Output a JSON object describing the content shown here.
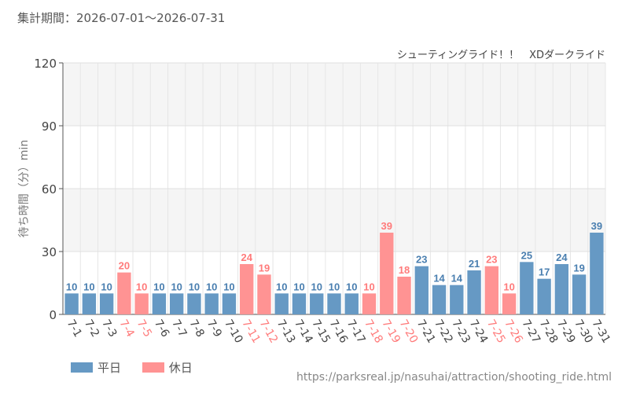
{
  "period_label": "集計期間：2026-07-01～2026-07-31",
  "source_url": "https://parksreal.jp/nasuhai/attraction/shooting_ride.html",
  "chart_data": {
    "type": "bar",
    "title": "シューティングライド！！　XDダークライド",
    "ylabel": "待ち時間（分）min",
    "xlabel": "",
    "ylim": [
      0,
      120
    ],
    "yticks": [
      0,
      30,
      60,
      90,
      120
    ],
    "grid": true,
    "categories": [
      "7-1",
      "7-2",
      "7-3",
      "7-4",
      "7-5",
      "7-6",
      "7-7",
      "7-8",
      "7-9",
      "7-10",
      "7-11",
      "7-12",
      "7-13",
      "7-14",
      "7-15",
      "7-16",
      "7-17",
      "7-18",
      "7-19",
      "7-20",
      "7-21",
      "7-22",
      "7-23",
      "7-24",
      "7-25",
      "7-26",
      "7-27",
      "7-28",
      "7-29",
      "7-30",
      "7-31"
    ],
    "values": [
      10,
      10,
      10,
      20,
      10,
      10,
      10,
      10,
      10,
      10,
      24,
      19,
      10,
      10,
      10,
      10,
      10,
      10,
      39,
      18,
      23,
      14,
      14,
      21,
      23,
      10,
      25,
      17,
      24,
      19,
      39
    ],
    "day_type": [
      "平日",
      "平日",
      "平日",
      "休日",
      "休日",
      "平日",
      "平日",
      "平日",
      "平日",
      "平日",
      "休日",
      "休日",
      "平日",
      "平日",
      "平日",
      "平日",
      "平日",
      "休日",
      "休日",
      "休日",
      "平日",
      "平日",
      "平日",
      "平日",
      "休日",
      "休日",
      "平日",
      "平日",
      "平日",
      "平日",
      "平日"
    ],
    "legend": [
      {
        "name": "平日",
        "color": "#6699c4"
      },
      {
        "name": "休日",
        "color": "#ff9393"
      }
    ],
    "legend_position": "bottom-left",
    "colors": {
      "weekday_bar": "#6699c4",
      "holiday_bar": "#ff9393",
      "weekday_label": "#4a7fb0",
      "holiday_label": "#ff7b7b"
    }
  }
}
